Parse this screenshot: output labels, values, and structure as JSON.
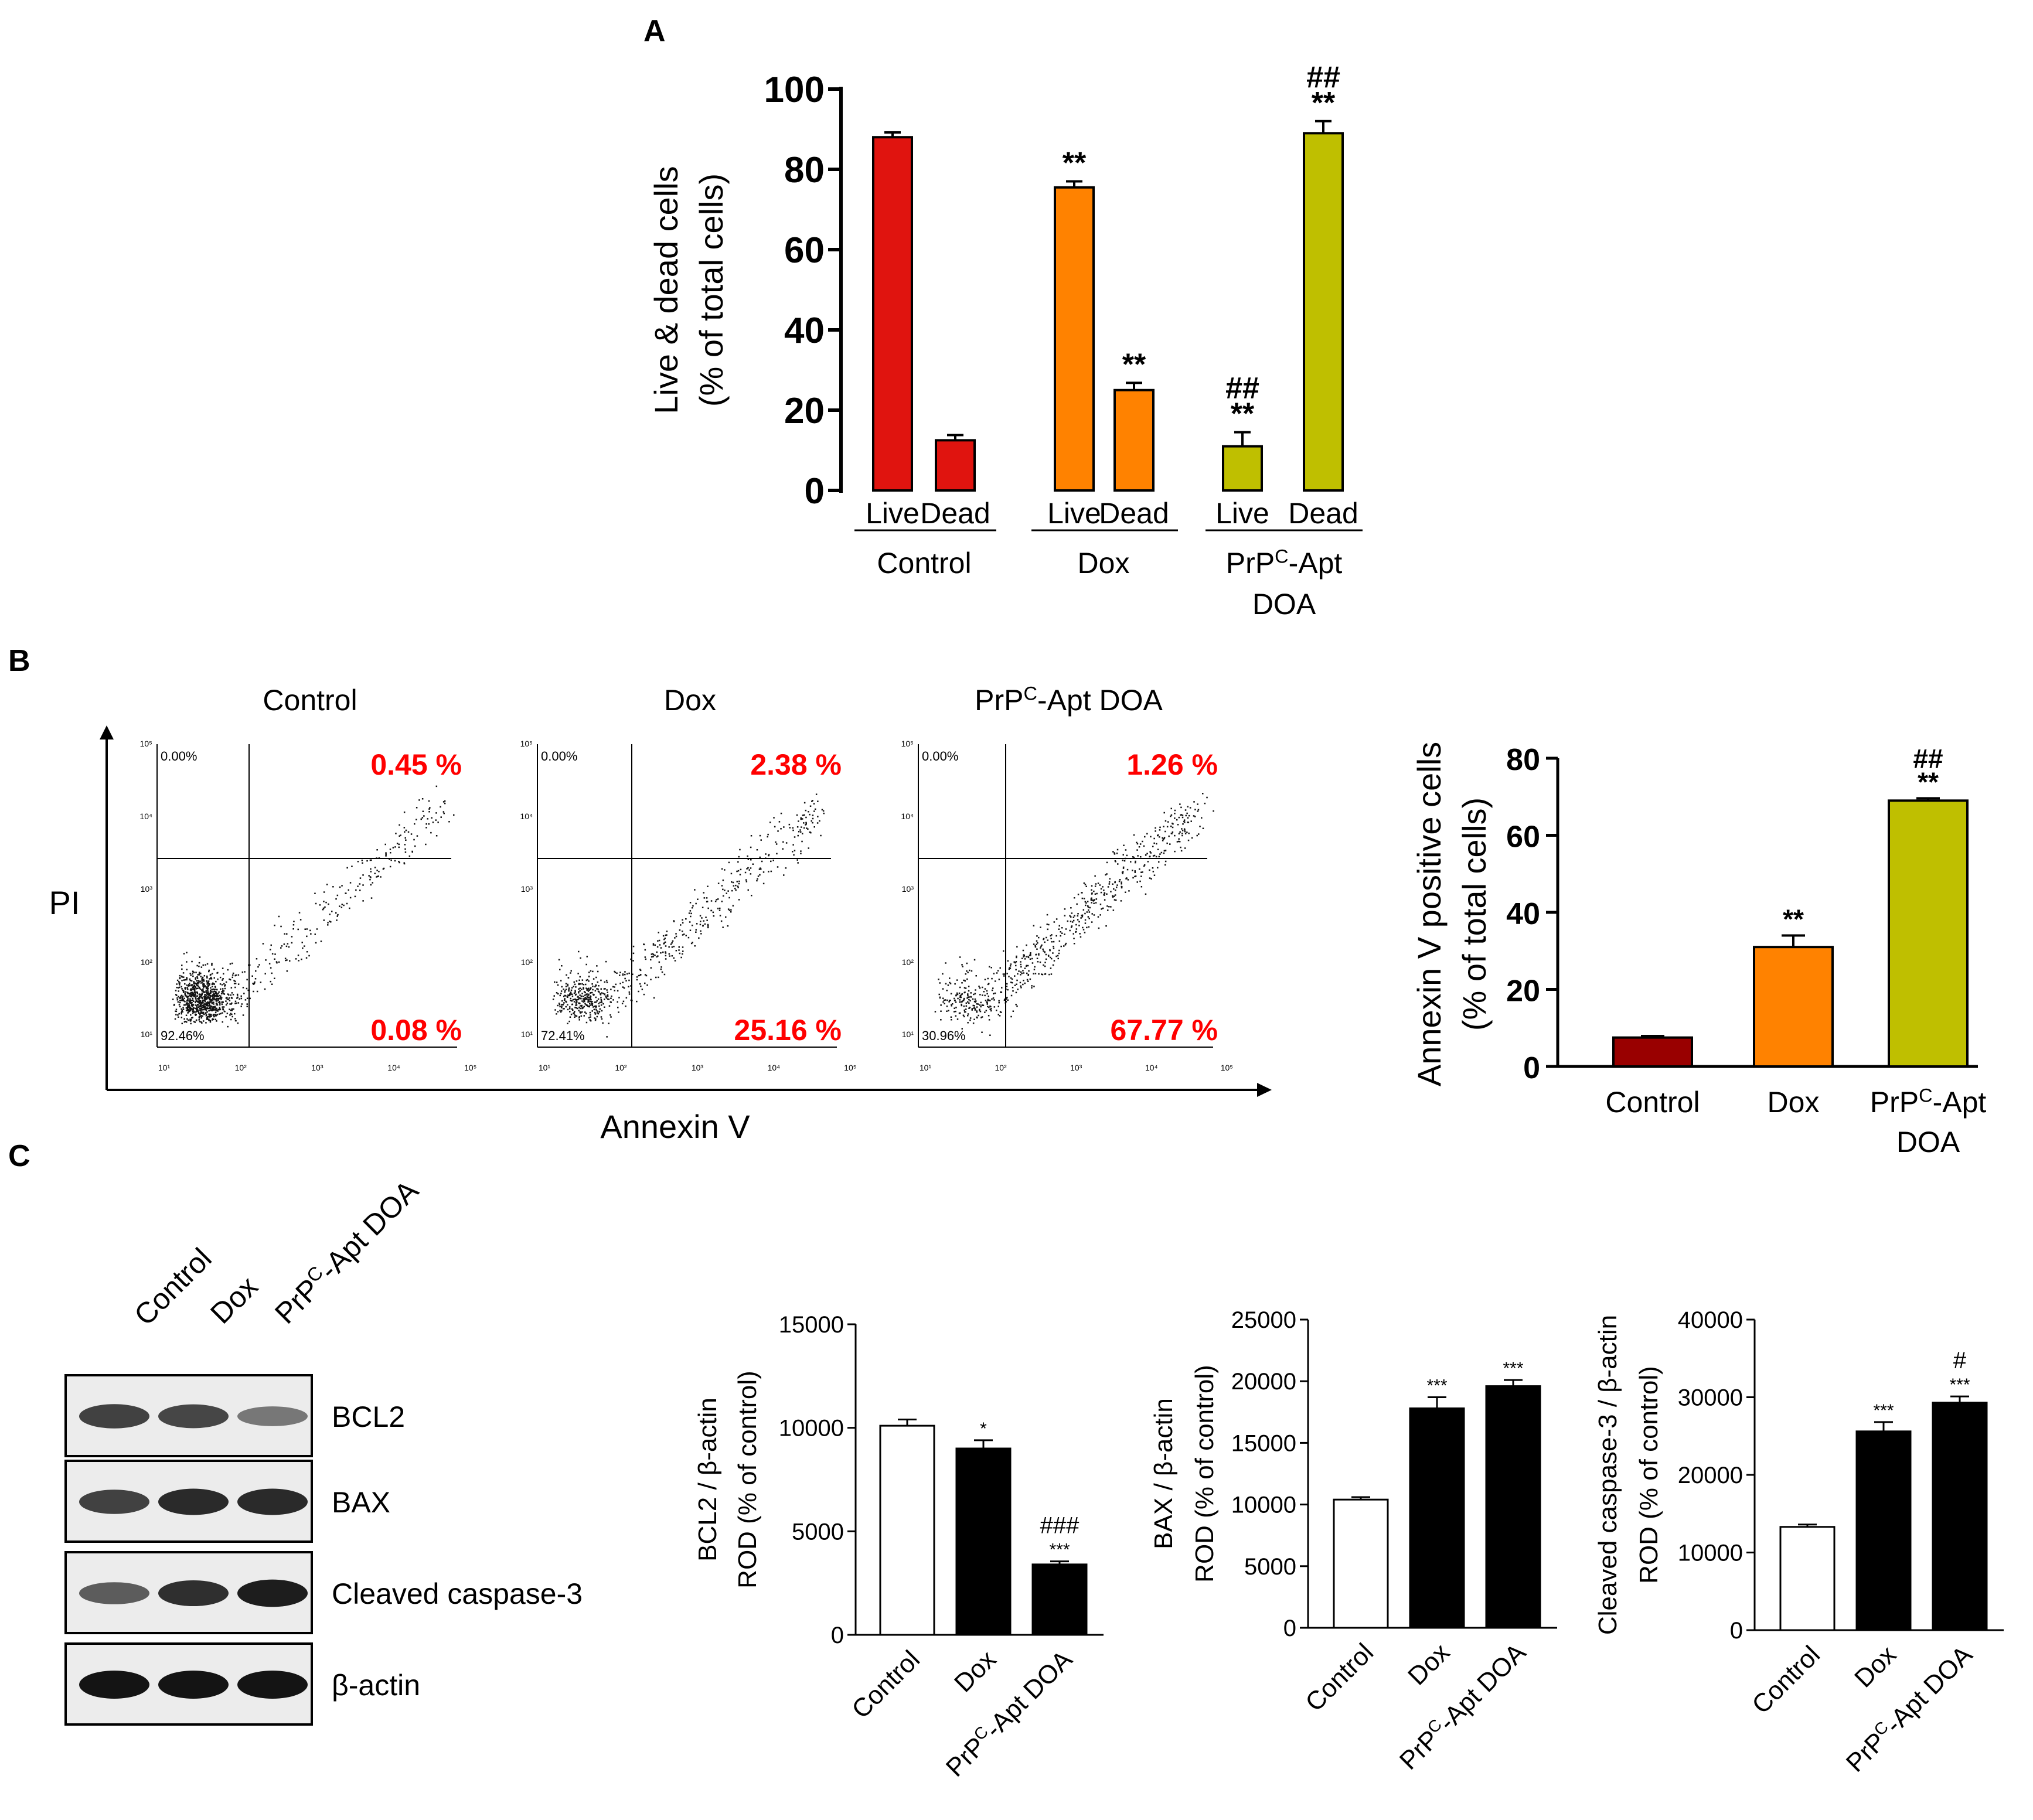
{
  "panel_labels": {
    "a": "A",
    "b": "B",
    "c": "C"
  },
  "colors": {
    "control_red": "#e0140f",
    "dox_orange": "#ff8200",
    "doa_olive": "#bfbf00",
    "control_darkred": "#990000",
    "sig_text": "#000000",
    "percent_red": "#ff0000",
    "bar_white": "#ffffff",
    "bar_black": "#000000"
  },
  "panel_b": {
    "flow_x_label": "Annexin V",
    "flow_y_label": "PI",
    "flow_plots": [
      {
        "title": "Control",
        "upper_left": "0.00%",
        "upper_right": "0.45 %",
        "lower_right": "0.08 %",
        "lower_left": "92.46%"
      },
      {
        "title": "Dox",
        "upper_left": "0.00%",
        "upper_right": "2.38 %",
        "lower_right": "25.16 %",
        "lower_left": "72.41%"
      },
      {
        "title": "PrPC-Apt DOA",
        "upper_left": "0.00%",
        "upper_right": "1.26 %",
        "lower_right": "67.77 %",
        "lower_left": "30.96%"
      }
    ],
    "flow_tick_labels": [
      "10¹",
      "10²",
      "10³",
      "10⁴",
      "10⁵"
    ]
  },
  "panel_c": {
    "blot_lanes": [
      "Control",
      "Dox",
      "PrPC-Apt DOA"
    ],
    "blot_proteins": [
      "BCL2",
      "BAX",
      "Cleaved caspase-3",
      "β-actin"
    ]
  },
  "chart_data": [
    {
      "id": "A",
      "type": "bar",
      "groups": [
        "Control",
        "Dox",
        "PrPC-Apt DOA"
      ],
      "categories": [
        "Live",
        "Dead",
        "Live",
        "Dead",
        "Live",
        "Dead"
      ],
      "values": [
        88,
        12.5,
        75.5,
        25,
        11,
        89
      ],
      "errors": [
        1.2,
        1.3,
        1.5,
        1.8,
        3.5,
        3
      ],
      "significance": [
        "",
        "",
        "**",
        "**",
        "##\n**",
        "##\n**"
      ],
      "ylabel": "Live & dead cells\n(% of total cells)",
      "ylim": [
        0,
        100
      ],
      "yticks": [
        0,
        20,
        40,
        60,
        80,
        100
      ]
    },
    {
      "id": "B",
      "type": "bar",
      "categories": [
        "Control",
        "Dox",
        "PrPC-Apt DOA"
      ],
      "values": [
        7.5,
        31,
        69
      ],
      "errors": [
        0.4,
        3,
        0.6
      ],
      "significance": [
        "",
        "**",
        "##\n**"
      ],
      "ylabel": "Annexin V positive cells\n(% of total cells)",
      "ylim": [
        0,
        80
      ],
      "yticks": [
        0,
        20,
        40,
        60,
        80
      ]
    },
    {
      "id": "C1",
      "type": "bar",
      "categories": [
        "Control",
        "Dox",
        "PrPC-Apt DOA"
      ],
      "values": [
        10100,
        9000,
        3400
      ],
      "errors": [
        300,
        400,
        150
      ],
      "significance": [
        "",
        "*",
        "###\n***"
      ],
      "ylabel": "BCL2 / β-actin\nROD (% of control)",
      "ylim": [
        0,
        15000
      ],
      "yticks": [
        0,
        5000,
        10000,
        15000
      ]
    },
    {
      "id": "C2",
      "type": "bar",
      "categories": [
        "Control",
        "Dox",
        "PrPC-Apt DOA"
      ],
      "values": [
        10400,
        17800,
        19600
      ],
      "errors": [
        200,
        900,
        500
      ],
      "significance": [
        "",
        "***",
        "***"
      ],
      "ylabel": "BAX / β-actin\nROD (% of control)",
      "ylim": [
        0,
        25000
      ],
      "yticks": [
        0,
        5000,
        10000,
        15000,
        20000,
        25000
      ]
    },
    {
      "id": "C3",
      "type": "bar",
      "categories": [
        "Control",
        "Dox",
        "PrPC-Apt DOA"
      ],
      "values": [
        13300,
        25600,
        29300
      ],
      "errors": [
        300,
        1200,
        800
      ],
      "significance": [
        "",
        "***",
        "#\n***"
      ],
      "ylabel": "Cleaved caspase-3 / β-actin\nROD (% of control)",
      "ylim": [
        0,
        40000
      ],
      "yticks": [
        0,
        10000,
        20000,
        30000,
        40000
      ]
    }
  ]
}
